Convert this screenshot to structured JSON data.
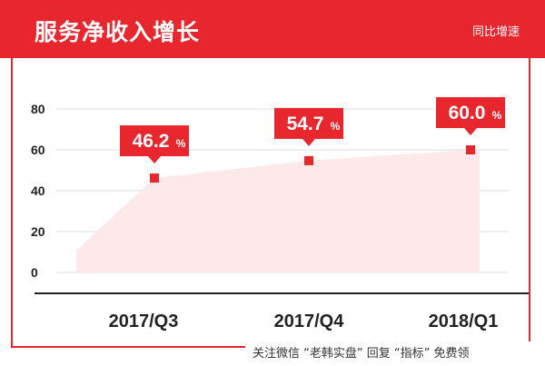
{
  "header": {
    "title": "服务净收入增长",
    "note": "同比增速"
  },
  "footer": {
    "text": "关注微信 “老韩实盘” 回复 “指标” 免费领"
  },
  "colors": {
    "accent": "#e8262d",
    "area_fill": "#fde8ea",
    "grid": "#dedede",
    "text": "#222222"
  },
  "chart_data": {
    "type": "area",
    "title": "服务净收入增长",
    "xlabel": "",
    "ylabel": "",
    "ylim": [
      0,
      80
    ],
    "yticks": [
      0,
      20,
      40,
      60,
      80
    ],
    "categories": [
      "2017/Q3",
      "2017/Q4",
      "2018/Q1"
    ],
    "series": [
      {
        "values": [
          46.2,
          54.7,
          60.0
        ],
        "labels": [
          "46.2",
          "54.7",
          "60.0"
        ],
        "unit": "%"
      }
    ],
    "grid": true,
    "legend": "none"
  }
}
